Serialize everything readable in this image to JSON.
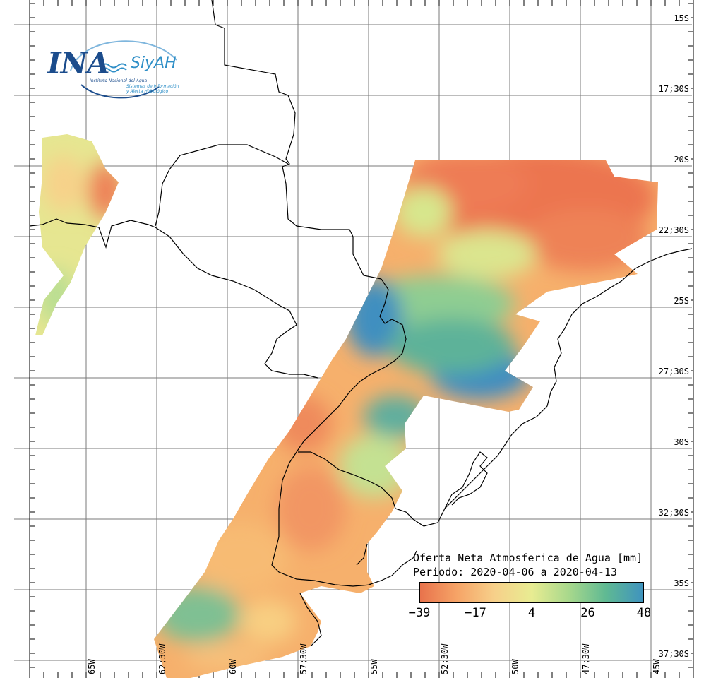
{
  "logo": {
    "name": "INA",
    "institution": "Instituto Nacional del Agua",
    "system": "SiyAH",
    "system_line1": "Sistemas de Información",
    "system_line2": "y Alerta Hidrológico"
  },
  "legend": {
    "title": "Oferta Neta Atmosferica de Agua [mm]",
    "period": "Periodo: 2020-04-06 a 2020-04-13",
    "ticks": [
      "−39",
      "−17",
      "4",
      "26",
      "48"
    ],
    "colors": [
      "#e8734c",
      "#f6a467",
      "#f7d08a",
      "#e8ec92",
      "#a8d88c",
      "#5fb993",
      "#3f93bf"
    ]
  },
  "latitude_labels": [
    "15S",
    "17;30S",
    "20S",
    "22;30S",
    "25S",
    "27;30S",
    "30S",
    "32;30S",
    "35S",
    "37;30S"
  ],
  "longitude_labels": [
    "65W",
    "62;30W",
    "60W",
    "57;30W",
    "55W",
    "52;30W",
    "50W",
    "47;30W",
    "45W"
  ]
}
